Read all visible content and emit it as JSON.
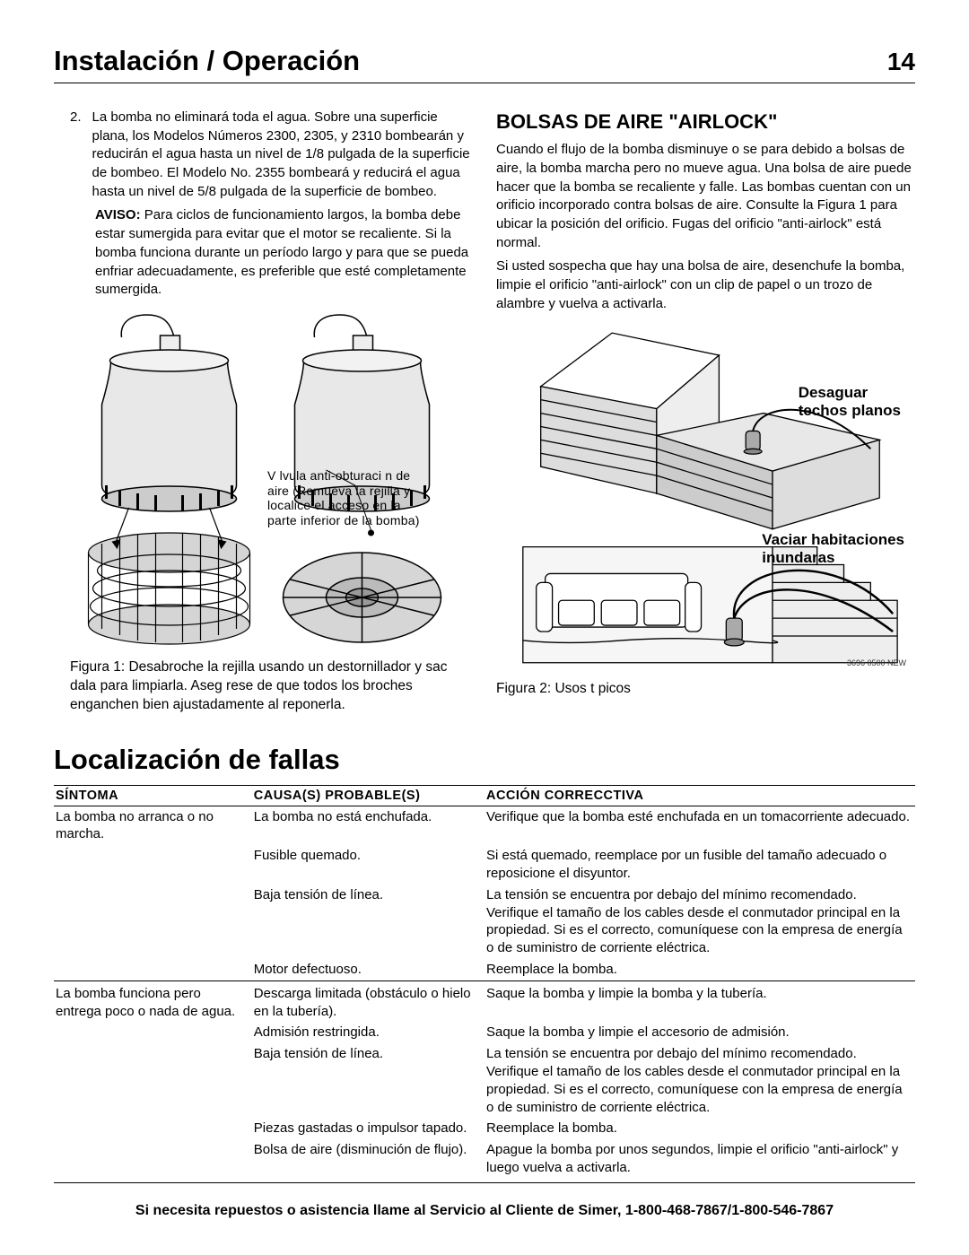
{
  "header": {
    "title": "Instalación / Operación",
    "page_number": "14"
  },
  "left_col": {
    "item_number": "2.",
    "item_text": "La bomba no eliminará toda el agua.  Sobre una superficie plana, los Modelos Números 2300, 2305, y 2310 bombearán y reducirán el agua hasta un nivel de 1/8 pulgada de la superficie de bombeo. El Modelo No. 2355 bombeará y reducirá el agua hasta un nivel de 5/8 pulgada de la superficie de bombeo.",
    "aviso_label": "AVISO:",
    "aviso_text": " Para ciclos de funcionamiento largos, la bomba debe estar sumergida para evitar que el motor se recaliente. Si la bomba funciona durante un período largo y para que se pueda enfriar adecuadamente, es preferible que esté completamente sumergida.",
    "callout": "V lvula anti-obturaci n de aire (Remueva la rejilla y localice el acceso en la parte inferior de la bomba)",
    "fig1_caption": "Figura 1: Desabroche la rejilla usando un destornillador y sac dala para limpiarla. Aseg rese de que todos los broches enganchen bien ajustadamente al reponerla."
  },
  "right_col": {
    "heading": "BOLSAS DE AIRE \"AIRLOCK\"",
    "para1": "Cuando el flujo de la bomba disminuye o se para debido a bolsas de aire, la bomba marcha pero no mueve agua. Una bolsa de aire puede hacer que la bomba se recaliente y falle. Las bombas cuentan con un orificio incorporado contra bolsas de aire. Consulte la Figura 1 para ubicar la posición del orificio. Fugas del orificio \"anti-airlock\" está normal.",
    "para2": "Si usted sospecha que hay una bolsa de aire, desenchufe la bomba, limpie el orificio \"anti-airlock\" con un clip de papel o un trozo de alambre y vuelva a activarla.",
    "fig2_label1": "Desaguar\ntechos planos",
    "fig2_label2": "Vaciar habitaciones\ninundaras",
    "fig2_tiny": "3696 0500 NEW",
    "fig2_caption": "Figura 2: Usos t picos"
  },
  "troubleshooting": {
    "title": "Localización de fallas",
    "headers": [
      "SÍNTOMA",
      "CAUSA(S) PROBABLE(S)",
      "ACCIÓN CORRECCTIVA"
    ],
    "rows": [
      {
        "symptom": "La bomba no arranca o no marcha.",
        "cause": "La bomba no está enchufada.",
        "action": "Verifique que la bomba esté enchufada en un tomacorriente adecuado."
      },
      {
        "symptom": "",
        "cause": "Fusible quemado.",
        "action": "Si está quemado, reemplace por un fusible del tamaño adecuado o reposicione el disyuntor."
      },
      {
        "symptom": "",
        "cause": "Baja tensión de línea.",
        "action": "La tensión se encuentra por debajo del mínimo recomendado. Verifique el tamaño de los cables desde el conmutador principal en la propiedad. Si es el correcto, comuníquese con la empresa de energía o de suministro de corriente eléctrica."
      },
      {
        "symptom": "",
        "cause": "Motor defectuoso.",
        "action": "Reemplace la bomba."
      },
      {
        "sep": true,
        "symptom": "La bomba funciona pero entrega poco o nada de agua.",
        "cause": "Descarga limitada (obstáculo o hielo en la tubería).",
        "action": "Saque la bomba y limpie la bomba y la tubería."
      },
      {
        "symptom": "",
        "cause": "Admisión restringida.",
        "action": "Saque la bomba y limpie el accesorio de admisión."
      },
      {
        "symptom": "",
        "cause": "Baja tensión de línea.",
        "action": "La tensión se encuentra por debajo del mínimo recomendado. Verifique el tamaño de los cables desde el conmutador principal en la propiedad.  Si es el correcto, comuníquese con la empresa de energía o de suministro de corriente eléctrica."
      },
      {
        "symptom": "",
        "cause": "Piezas gastadas o impulsor tapado.",
        "action": "Reemplace la bomba."
      },
      {
        "symptom": "",
        "cause": "Bolsa de aire (disminución de flujo).",
        "action": "Apague la bomba por unos segundos, limpie el orificio \"anti-airlock\" y luego vuelva a activarla."
      }
    ]
  },
  "footer": "Si necesita repuestos o asistencia llame al Servicio al Cliente de Simer, 1-800-468-7867/1-800-546-7867"
}
